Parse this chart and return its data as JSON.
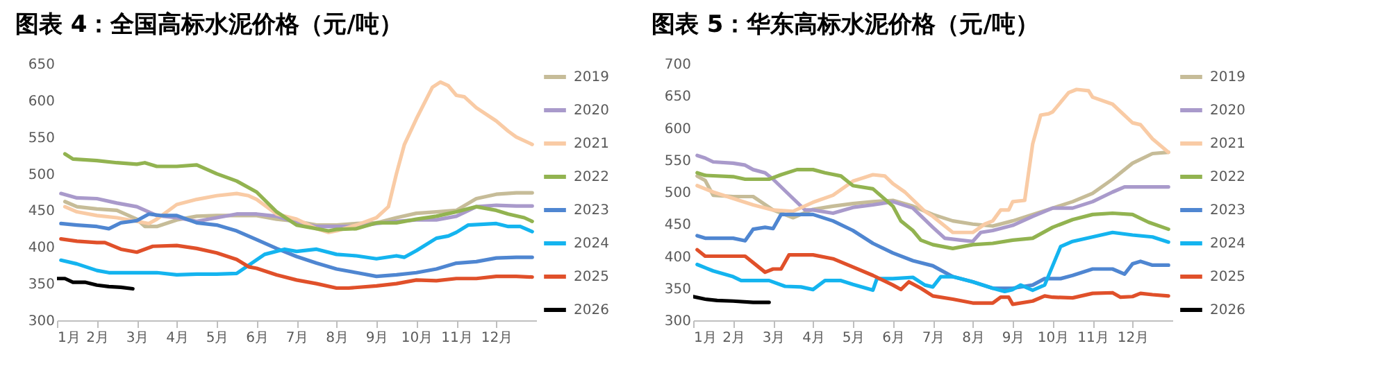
{
  "chart_data": [
    {
      "type": "line",
      "title": "图表 4：全国高标水泥价格（元/吨）",
      "xlim": [
        1,
        13
      ],
      "xticks": [
        {
          "value": 1,
          "label": "1月"
        },
        {
          "value": 2,
          "label": "2月"
        },
        {
          "value": 3,
          "label": "3月"
        },
        {
          "value": 4,
          "label": "4月"
        },
        {
          "value": 5,
          "label": "5月"
        },
        {
          "value": 6,
          "label": "6月"
        },
        {
          "value": 7,
          "label": "7月"
        },
        {
          "value": 8,
          "label": "8月"
        },
        {
          "value": 9,
          "label": "9月"
        },
        {
          "value": 10,
          "label": "10月"
        },
        {
          "value": 11,
          "label": "11月"
        },
        {
          "value": 12,
          "label": "12月"
        }
      ],
      "ylim": [
        300,
        650
      ],
      "yticks": [
        300,
        350,
        400,
        450,
        500,
        550,
        600,
        650
      ],
      "grid": false,
      "legend": "right",
      "line_style": "solid",
      "series": [
        {
          "name": "2019",
          "color": "#c6bc98",
          "x": [
            1.2,
            1.5,
            2,
            2.5,
            3,
            3.2,
            3.5,
            4,
            4.5,
            5,
            5.5,
            6,
            6.5,
            7,
            7.5,
            8,
            8.5,
            9,
            9.5,
            10,
            10.5,
            11,
            11.5,
            12,
            12.5,
            12.9
          ],
          "values": [
            462,
            455,
            452,
            450,
            438,
            428,
            428,
            437,
            442,
            443,
            443,
            443,
            438,
            435,
            430,
            430,
            432,
            433,
            440,
            446,
            448,
            450,
            466,
            472,
            474,
            474
          ]
        },
        {
          "name": "2020",
          "color": "#a99acb",
          "x": [
            1.1,
            1.5,
            2,
            2.5,
            3,
            3.5,
            4,
            4.5,
            5,
            5.5,
            6,
            6.5,
            7,
            7.5,
            8,
            8.5,
            9,
            9.5,
            10,
            10.5,
            11,
            11.5,
            12,
            12.5,
            12.9
          ],
          "values": [
            473,
            467,
            466,
            460,
            455,
            443,
            440,
            435,
            440,
            445,
            445,
            442,
            433,
            428,
            428,
            428,
            432,
            435,
            437,
            437,
            442,
            455,
            457,
            456,
            456
          ]
        },
        {
          "name": "2021",
          "color": "#f9cba5",
          "x": [
            1.2,
            1.5,
            2,
            2.5,
            3,
            3.3,
            3.5,
            4,
            4.5,
            5,
            5.5,
            5.8,
            6,
            6.5,
            7,
            7.5,
            7.8,
            8,
            8.5,
            9,
            9.3,
            9.5,
            9.7,
            10,
            10.4,
            10.6,
            10.8,
            11,
            11.2,
            11.5,
            12,
            12.3,
            12.5,
            12.9
          ],
          "values": [
            455,
            448,
            443,
            440,
            435,
            432,
            438,
            458,
            465,
            470,
            473,
            470,
            465,
            445,
            438,
            425,
            420,
            422,
            430,
            440,
            455,
            500,
            540,
            575,
            618,
            625,
            620,
            607,
            605,
            590,
            572,
            558,
            550,
            540
          ]
        },
        {
          "name": "2022",
          "color": "#92b350",
          "x": [
            1.2,
            1.4,
            2,
            2.5,
            3,
            3.2,
            3.5,
            4,
            4.5,
            5,
            5.5,
            6,
            6.5,
            7,
            7.5,
            7.8,
            8,
            8.5,
            9,
            9.5,
            10,
            10.5,
            11,
            11.5,
            12,
            12.3,
            12.7,
            12.9
          ],
          "values": [
            527,
            520,
            518,
            515,
            513,
            515,
            510,
            510,
            512,
            500,
            490,
            475,
            448,
            430,
            425,
            422,
            424,
            425,
            433,
            433,
            438,
            442,
            448,
            455,
            450,
            445,
            440,
            435
          ]
        },
        {
          "name": "2023",
          "color": "#4f86d1",
          "x": [
            1.1,
            1.5,
            2,
            2.3,
            2.6,
            3,
            3.3,
            3.6,
            4,
            4.5,
            5,
            5.5,
            6,
            6.5,
            7,
            7.5,
            8,
            8.5,
            9,
            9.5,
            10,
            10.5,
            11,
            11.5,
            12,
            12.5,
            12.9
          ],
          "values": [
            432,
            430,
            428,
            425,
            433,
            436,
            445,
            443,
            443,
            433,
            430,
            422,
            410,
            398,
            387,
            378,
            370,
            365,
            360,
            362,
            365,
            370,
            378,
            380,
            385,
            386,
            386
          ]
        },
        {
          "name": "2024",
          "color": "#14b4ef",
          "x": [
            1.1,
            1.5,
            2,
            2.3,
            3,
            3.5,
            4,
            4.5,
            5,
            5.5,
            5.8,
            6.2,
            6.7,
            7,
            7.5,
            8,
            8.5,
            9,
            9.5,
            9.7,
            10,
            10.5,
            10.8,
            11,
            11.3,
            12,
            12.3,
            12.6,
            12.9
          ],
          "values": [
            382,
            377,
            368,
            365,
            365,
            365,
            362,
            363,
            363,
            364,
            375,
            390,
            397,
            394,
            397,
            390,
            388,
            384,
            388,
            386,
            395,
            412,
            415,
            420,
            430,
            432,
            428,
            428,
            421
          ]
        },
        {
          "name": "2025",
          "color": "#e0502a",
          "x": [
            1.1,
            1.5,
            2,
            2.2,
            2.6,
            3,
            3.4,
            4,
            4.5,
            5,
            5.5,
            5.8,
            6,
            6.5,
            7,
            7.5,
            8,
            8.3,
            9,
            9.5,
            10,
            10.5,
            11,
            11.5,
            12,
            12.5,
            12.9
          ],
          "values": [
            411,
            408,
            406,
            406,
            397,
            393,
            401,
            402,
            398,
            392,
            383,
            373,
            371,
            362,
            355,
            350,
            344,
            344,
            347,
            350,
            355,
            354,
            357,
            357,
            360,
            360,
            359
          ]
        },
        {
          "name": "2026",
          "color": "#000000",
          "x": [
            1,
            1.2,
            1.4,
            1.7,
            2,
            2.3,
            2.6,
            2.9
          ],
          "values": [
            357,
            357,
            352,
            352,
            348,
            346,
            345,
            343
          ]
        }
      ]
    },
    {
      "type": "line",
      "title": "图表 5：华东高标水泥价格（元/吨）",
      "xlim": [
        1,
        13
      ],
      "xticks": [
        {
          "value": 1,
          "label": "1月"
        },
        {
          "value": 2,
          "label": "2月"
        },
        {
          "value": 3,
          "label": "3月"
        },
        {
          "value": 4,
          "label": "4月"
        },
        {
          "value": 5,
          "label": "5月"
        },
        {
          "value": 6,
          "label": "6月"
        },
        {
          "value": 7,
          "label": "7月"
        },
        {
          "value": 8,
          "label": "8月"
        },
        {
          "value": 9,
          "label": "9月"
        },
        {
          "value": 10,
          "label": "10月"
        },
        {
          "value": 11,
          "label": "11月"
        },
        {
          "value": 12,
          "label": "12月"
        }
      ],
      "ylim": [
        300,
        700
      ],
      "yticks": [
        300,
        350,
        400,
        450,
        500,
        550,
        600,
        650,
        700
      ],
      "grid": false,
      "legend": "right",
      "line_style": "solid",
      "series": [
        {
          "name": "2019",
          "color": "#c6bc98",
          "x": [
            1.1,
            1.3,
            1.5,
            2,
            2.5,
            3,
            3.5,
            4,
            4.5,
            5,
            5.5,
            6,
            6.5,
            7,
            7.5,
            8,
            8.5,
            9,
            9.5,
            10,
            10.5,
            11,
            11.5,
            12,
            12.5,
            12.9
          ],
          "values": [
            525,
            518,
            495,
            493,
            493,
            472,
            460,
            473,
            478,
            482,
            485,
            487,
            478,
            465,
            455,
            450,
            447,
            455,
            465,
            475,
            485,
            498,
            520,
            545,
            560,
            562
          ]
        },
        {
          "name": "2020",
          "color": "#a99acb",
          "x": [
            1.1,
            1.3,
            1.5,
            2,
            2.3,
            2.5,
            2.8,
            3,
            3.5,
            3.8,
            4,
            4.5,
            5,
            5.5,
            6,
            6.5,
            7,
            7.3,
            7.7,
            8,
            8.2,
            8.5,
            9,
            9.5,
            10,
            10.5,
            11,
            11.5,
            11.8,
            12,
            12.9
          ],
          "values": [
            557,
            553,
            547,
            545,
            542,
            535,
            530,
            520,
            490,
            472,
            472,
            467,
            476,
            480,
            485,
            475,
            445,
            428,
            425,
            423,
            437,
            440,
            448,
            462,
            475,
            475,
            485,
            500,
            508,
            508,
            508
          ]
        },
        {
          "name": "2021",
          "color": "#f9cba5",
          "x": [
            1.1,
            1.5,
            2,
            2.5,
            3,
            3.5,
            4,
            4.5,
            5,
            5.5,
            5.8,
            6,
            6.3,
            6.8,
            7,
            7.5,
            8,
            8.3,
            8.5,
            8.7,
            8.9,
            9,
            9.3,
            9.5,
            9.7,
            9.9,
            10,
            10.4,
            10.6,
            10.9,
            11,
            11.5,
            12,
            12.2,
            12.5,
            12.9
          ],
          "values": [
            510,
            500,
            490,
            480,
            472,
            470,
            484,
            495,
            517,
            527,
            525,
            513,
            500,
            470,
            462,
            437,
            437,
            450,
            455,
            472,
            472,
            485,
            487,
            575,
            620,
            622,
            625,
            655,
            660,
            658,
            648,
            637,
            608,
            605,
            583,
            562
          ]
        },
        {
          "name": "2022",
          "color": "#92b350",
          "x": [
            1.1,
            1.3,
            2,
            2.3,
            2.9,
            3.2,
            3.6,
            4,
            4.3,
            4.7,
            5,
            5.5,
            6,
            6.2,
            6.5,
            6.7,
            7,
            7.5,
            8,
            8.5,
            9,
            9.5,
            10,
            10.5,
            11,
            11.5,
            12,
            12.4,
            12.9
          ],
          "values": [
            530,
            526,
            524,
            520,
            520,
            527,
            535,
            535,
            530,
            525,
            510,
            505,
            478,
            455,
            440,
            425,
            418,
            412,
            418,
            420,
            425,
            428,
            445,
            457,
            465,
            467,
            465,
            453,
            442
          ]
        },
        {
          "name": "2023",
          "color": "#4f86d1",
          "x": [
            1.1,
            1.3,
            2,
            2.3,
            2.5,
            2.8,
            3,
            3.2,
            4,
            4.5,
            5,
            5.5,
            6,
            6.5,
            7,
            7.5,
            8,
            8.5,
            9,
            9.5,
            9.8,
            10.2,
            10.5,
            11,
            11.5,
            11.8,
            12,
            12.2,
            12.5,
            12.9
          ],
          "values": [
            432,
            428,
            428,
            424,
            442,
            445,
            443,
            465,
            465,
            455,
            440,
            420,
            405,
            393,
            385,
            368,
            360,
            350,
            350,
            355,
            365,
            365,
            370,
            380,
            380,
            372,
            388,
            392,
            386,
            386
          ]
        },
        {
          "name": "2024",
          "color": "#14b4ef",
          "x": [
            1.1,
            1.5,
            2,
            2.2,
            2.9,
            3.3,
            3.7,
            4,
            4.3,
            4.7,
            5,
            5.5,
            5.6,
            6,
            6.5,
            6.8,
            7,
            7.2,
            7.5,
            8,
            8.5,
            8.8,
            9,
            9.2,
            9.5,
            9.8,
            10,
            10.2,
            10.5,
            11,
            11.5,
            12,
            12.5,
            12.9
          ],
          "values": [
            387,
            377,
            368,
            362,
            362,
            353,
            352,
            348,
            362,
            362,
            356,
            347,
            365,
            365,
            367,
            355,
            352,
            368,
            368,
            360,
            350,
            345,
            348,
            355,
            347,
            355,
            385,
            415,
            423,
            430,
            437,
            433,
            430,
            422
          ]
        },
        {
          "name": "2025",
          "color": "#e0502a",
          "x": [
            1.1,
            1.3,
            2,
            2.3,
            2.6,
            2.8,
            3,
            3.2,
            3.4,
            4,
            4.5,
            5,
            5.5,
            6,
            6.2,
            6.4,
            6.7,
            7,
            7.5,
            8,
            8.5,
            8.7,
            8.9,
            9,
            9.5,
            9.8,
            10,
            10.5,
            11,
            11.5,
            11.7,
            12,
            12.2,
            12.5,
            12.9
          ],
          "values": [
            410,
            400,
            400,
            400,
            385,
            375,
            380,
            380,
            402,
            402,
            396,
            383,
            370,
            355,
            348,
            360,
            350,
            338,
            333,
            327,
            327,
            336,
            336,
            325,
            330,
            338,
            336,
            335,
            342,
            343,
            336,
            337,
            342,
            340,
            338
          ]
        },
        {
          "name": "2026",
          "color": "#000000",
          "x": [
            1,
            1.3,
            1.6,
            2,
            2.5,
            2.9
          ],
          "values": [
            337,
            333,
            331,
            330,
            328,
            328
          ]
        }
      ]
    }
  ]
}
